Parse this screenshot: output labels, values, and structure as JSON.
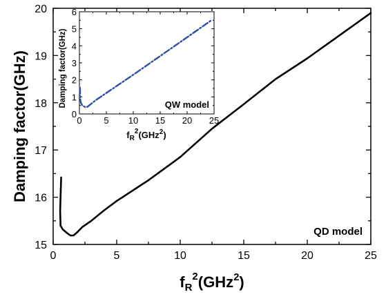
{
  "chart_data": [
    {
      "type": "line",
      "ylabel": "Damping factor(GHz)",
      "xlabel_base": "f",
      "xlabel_sub": "R",
      "xlabel_sup": "2",
      "xlabel_unit_pre": "(GHz",
      "xlabel_unit_sup": "2",
      "xlabel_unit_post": ")",
      "annotation": "QD model",
      "xlim": [
        0,
        25
      ],
      "ylim": [
        15,
        20
      ],
      "xticks": [
        "0",
        "5",
        "10",
        "15",
        "20",
        "25"
      ],
      "yticks": [
        "15",
        "16",
        "17",
        "18",
        "19",
        "20"
      ],
      "series": [
        {
          "color": "#000000",
          "style": "solid",
          "x": [
            0.63,
            0.58,
            0.55,
            0.58,
            0.75,
            1.1,
            1.35,
            1.6,
            1.9,
            2.3,
            3.0,
            4.0,
            5.0,
            7.5,
            10,
            12.5,
            15,
            17.5,
            20,
            22.5,
            25
          ],
          "y": [
            16.42,
            16.0,
            15.7,
            15.4,
            15.32,
            15.24,
            15.19,
            15.19,
            15.26,
            15.37,
            15.5,
            15.72,
            15.92,
            16.36,
            16.85,
            17.45,
            17.97,
            18.5,
            18.94,
            19.42,
            19.9
          ]
        }
      ]
    },
    {
      "type": "line",
      "inset": true,
      "ylabel": "Damping factor(GHz)",
      "xlabel_base": "f",
      "xlabel_sub": "R",
      "xlabel_sup": "2",
      "xlabel_unit_pre": "(GHz",
      "xlabel_unit_sup": "2",
      "xlabel_unit_post": ")",
      "annotation": "QW model",
      "xlim": [
        0,
        25
      ],
      "ylim": [
        0,
        6
      ],
      "xticks": [
        "0",
        "5",
        "10",
        "15",
        "20",
        "25"
      ],
      "yticks": [
        "0",
        "1",
        "2",
        "3",
        "4",
        "5",
        "6"
      ],
      "series": [
        {
          "color": "#2e4fa8",
          "style": "dashdot",
          "x": [
            0.1,
            0.15,
            0.2,
            0.35,
            0.55,
            0.8,
            1.1,
            1.5,
            2.0,
            3,
            5,
            10,
            15,
            20,
            24.5
          ],
          "y": [
            1.55,
            1.0,
            0.75,
            0.6,
            0.5,
            0.45,
            0.4,
            0.42,
            0.55,
            0.8,
            1.23,
            2.3,
            3.4,
            4.5,
            5.5
          ]
        }
      ]
    }
  ]
}
